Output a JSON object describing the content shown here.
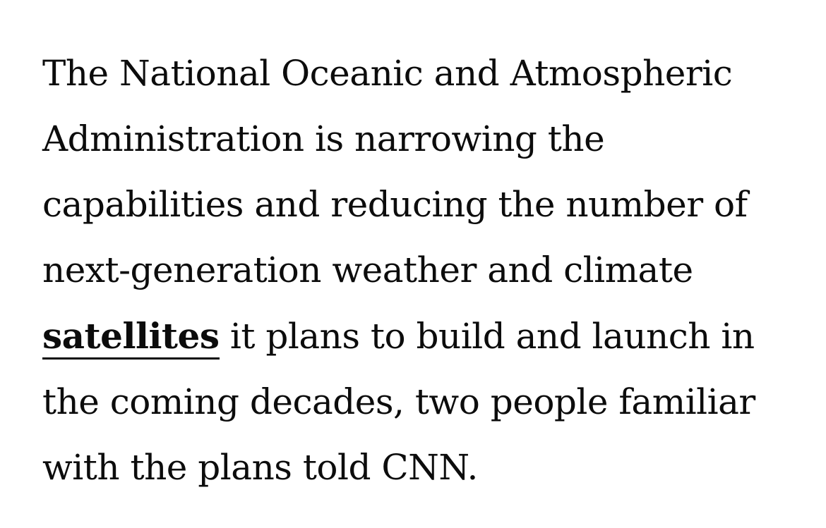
{
  "article": {
    "lines": {
      "l1": "The National Oceanic and Atmospheric",
      "l2": "Administration is narrowing the",
      "l3": "capabilities and reducing the number of",
      "l4": "next-generation weather and climate",
      "l5_link": "satellites",
      "l5_rest": " it plans to build and launch in",
      "l6": "the coming decades, two people familiar",
      "l7": "with the plans told CNN."
    }
  }
}
